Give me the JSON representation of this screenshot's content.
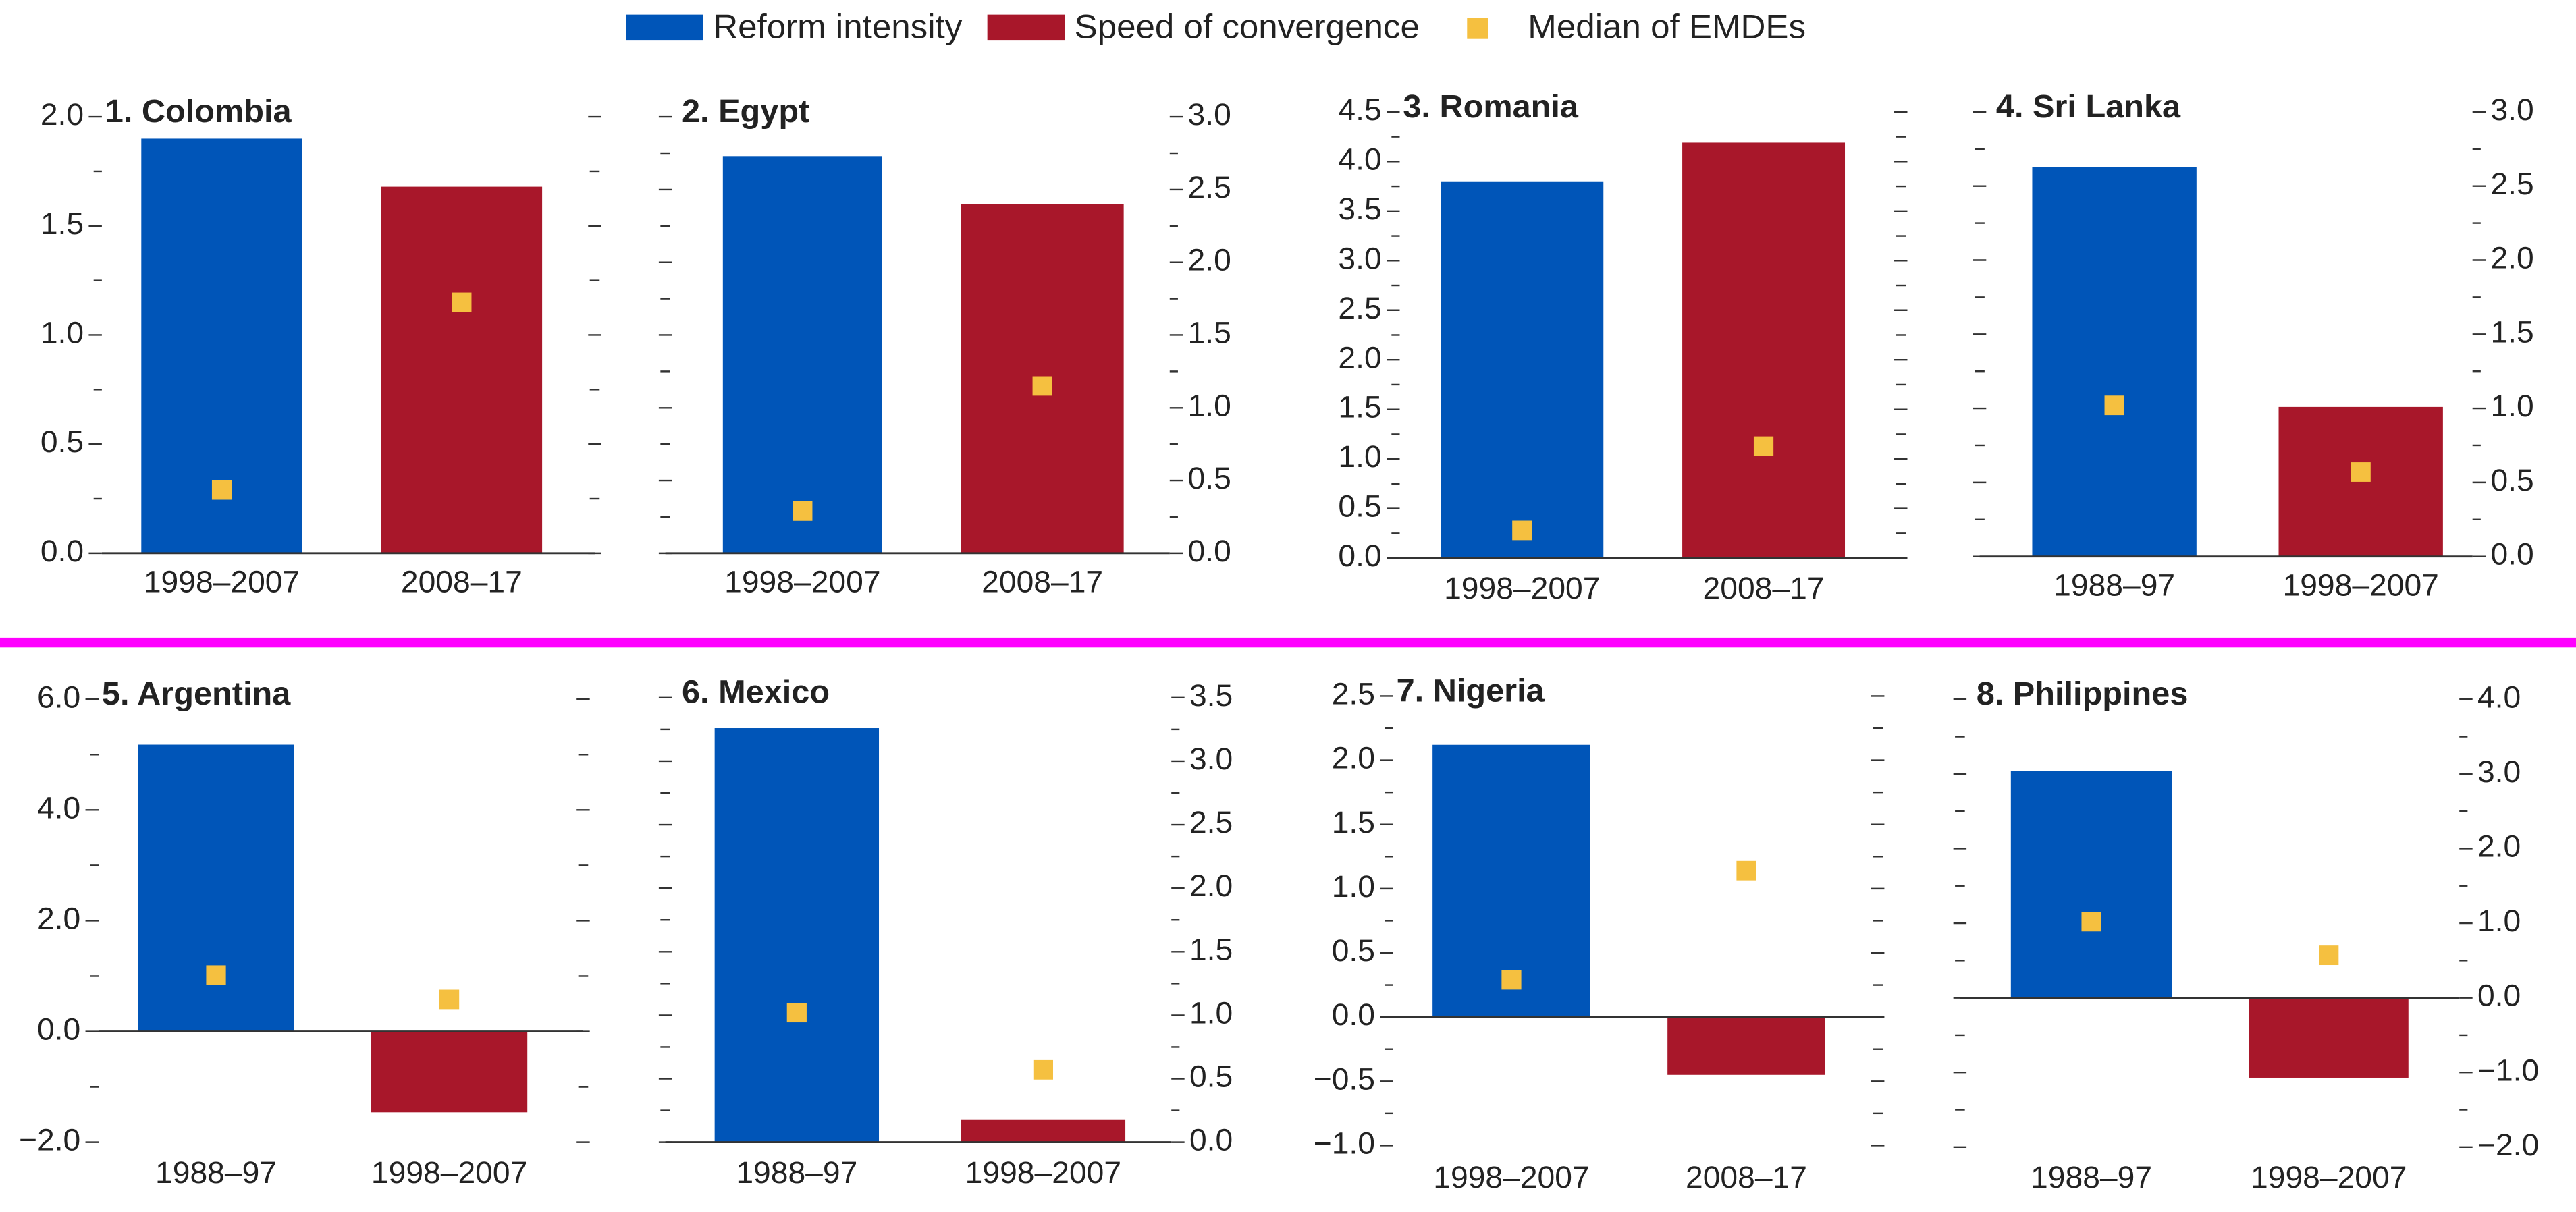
{
  "legend": [
    {
      "name": "Reform intensity",
      "color": "#0055b8"
    },
    {
      "name": "Speed of convergence",
      "color": "#a8172a"
    },
    {
      "name": "Median of EMDEs",
      "color": "#f5c040"
    }
  ],
  "chart_data": [
    {
      "type": "bar",
      "title": "1. Colombia",
      "categories": [
        "1998–2007",
        "2008–17"
      ],
      "values": [
        1.9,
        1.68
      ],
      "medians": [
        0.29,
        1.15
      ],
      "axis_side": "left",
      "ylim": [
        0,
        2
      ],
      "yticks": [
        {
          "value": 0,
          "label": "0.0"
        },
        0.5,
        {
          "value": 1,
          "label": "1.0"
        },
        1.5,
        {
          "value": 2,
          "label": "2.0"
        }
      ],
      "minor_yticks": [
        0.25,
        0.75,
        1.25,
        1.75
      ]
    },
    {
      "type": "bar",
      "title": "2. Egypt",
      "categories": [
        "1998–2007",
        "2008–17"
      ],
      "values": [
        2.73,
        2.4
      ],
      "medians": [
        0.29,
        1.15
      ],
      "axis_side": "right",
      "ylim": [
        0,
        3
      ],
      "yticks": [
        {
          "value": 0,
          "label": "0.0"
        },
        0.5,
        {
          "value": 1,
          "label": "1.0"
        },
        1.5,
        {
          "value": 2,
          "label": "2.0"
        },
        2.5,
        {
          "value": 3,
          "label": "3.0"
        }
      ],
      "minor_yticks": [
        0.25,
        0.75,
        1.25,
        1.75,
        2.25,
        2.75
      ]
    },
    {
      "type": "bar",
      "title": "3. Romania",
      "categories": [
        "1998–2007",
        "2008–17"
      ],
      "values": [
        3.8,
        4.19
      ],
      "medians": [
        0.28,
        1.13
      ],
      "axis_side": "left",
      "ylim": [
        0,
        4.5
      ],
      "yticks": [
        {
          "value": 0,
          "label": "0.0"
        },
        0.5,
        {
          "value": 1,
          "label": "1.0"
        },
        1.5,
        {
          "value": 2,
          "label": "2.0"
        },
        2.5,
        {
          "value": 3,
          "label": "3.0"
        },
        3.5,
        {
          "value": 4,
          "label": "4.0"
        },
        4.5
      ],
      "minor_yticks": [
        0.25,
        0.75,
        1.25,
        1.75,
        2.25,
        2.75,
        3.25,
        3.75,
        4.25
      ]
    },
    {
      "type": "bar",
      "title": "4. Sri Lanka",
      "categories": [
        "1988–97",
        "1998–2007"
      ],
      "values": [
        2.63,
        1.01
      ],
      "medians": [
        1.02,
        0.57
      ],
      "axis_side": "right",
      "ylim": [
        0,
        3
      ],
      "yticks": [
        {
          "value": 0,
          "label": "0.0"
        },
        0.5,
        {
          "value": 1,
          "label": "1.0"
        },
        1.5,
        {
          "value": 2,
          "label": "2.0"
        },
        2.5,
        {
          "value": 3,
          "label": "3.0"
        }
      ],
      "minor_yticks": [
        0.25,
        0.75,
        1.25,
        1.75,
        2.25,
        2.75
      ]
    },
    {
      "type": "bar",
      "title": "5. Argentina",
      "categories": [
        "1988–97",
        "1998–2007"
      ],
      "values": [
        5.18,
        -1.46
      ],
      "medians": [
        1.02,
        0.58
      ],
      "axis_side": "left",
      "ylim": [
        -2,
        6
      ],
      "yticks": [
        {
          "value": -2,
          "label": "−2.0"
        },
        {
          "value": 0,
          "label": "0.0"
        },
        {
          "value": 2,
          "label": "2.0"
        },
        {
          "value": 4,
          "label": "4.0"
        },
        {
          "value": 6,
          "label": "6.0"
        }
      ],
      "minor_yticks": [
        -1,
        1,
        3,
        5
      ]
    },
    {
      "type": "bar",
      "title": "6. Mexico",
      "categories": [
        "1988–97",
        "1998–2007"
      ],
      "values": [
        3.26,
        0.18
      ],
      "medians": [
        1.02,
        0.57
      ],
      "axis_side": "right",
      "ylim": [
        0,
        3.5
      ],
      "yticks": [
        {
          "value": 0,
          "label": "0.0"
        },
        0.5,
        {
          "value": 1,
          "label": "1.0"
        },
        1.5,
        {
          "value": 2,
          "label": "2.0"
        },
        2.5,
        {
          "value": 3,
          "label": "3.0"
        },
        3.5
      ],
      "minor_yticks": [
        0.25,
        0.75,
        1.25,
        1.75,
        2.25,
        2.75,
        3.25
      ]
    },
    {
      "type": "bar",
      "title": "7. Nigeria",
      "categories": [
        "1998–2007",
        "2008–17"
      ],
      "values": [
        2.12,
        -0.45
      ],
      "medians": [
        0.29,
        1.14
      ],
      "axis_side": "left",
      "ylim": [
        -1,
        2.5
      ],
      "yticks": [
        {
          "value": -1,
          "label": "−1.0"
        },
        {
          "value": -0.5,
          "label": "−0.5"
        },
        {
          "value": 0,
          "label": "0.0"
        },
        0.5,
        {
          "value": 1,
          "label": "1.0"
        },
        1.5,
        {
          "value": 2,
          "label": "2.0"
        },
        2.5
      ],
      "minor_yticks": [
        -0.75,
        -0.25,
        0.25,
        0.75,
        1.25,
        1.75,
        2.25
      ]
    },
    {
      "type": "bar",
      "title": "8. Philippines",
      "categories": [
        "1988–97",
        "1998–2007"
      ],
      "values": [
        3.04,
        -1.07
      ],
      "medians": [
        1.02,
        0.57
      ],
      "axis_side": "right",
      "ylim": [
        -2,
        4
      ],
      "yticks": [
        {
          "value": -2,
          "label": "−2.0"
        },
        {
          "value": -1,
          "label": "−1.0"
        },
        {
          "value": 0,
          "label": "0.0"
        },
        {
          "value": 1,
          "label": "1.0"
        },
        {
          "value": 2,
          "label": "2.0"
        },
        {
          "value": 3,
          "label": "3.0"
        },
        {
          "value": 4,
          "label": "4.0"
        }
      ],
      "minor_yticks": [
        -1.5,
        -0.5,
        0.5,
        1.5,
        2.5,
        3.5
      ]
    }
  ]
}
